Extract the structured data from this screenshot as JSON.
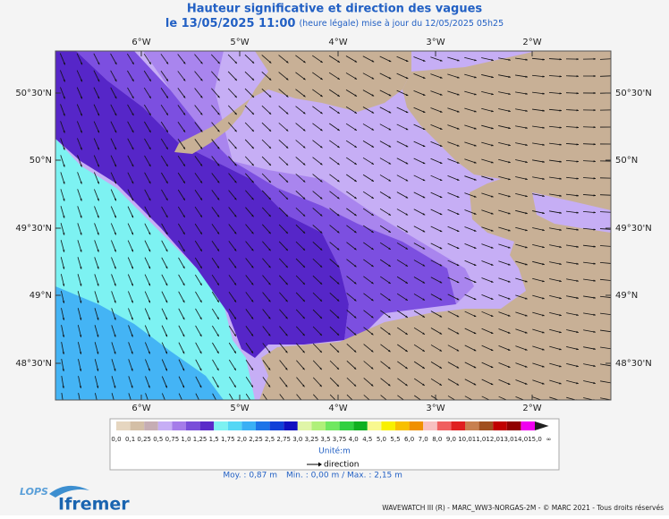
{
  "header": {
    "title": "Hauteur significative et direction des vagues",
    "date": "le 13/05/2025 11:00",
    "update": "(heure légale) mise à jour du 12/05/2025 05h25"
  },
  "map": {
    "longitudes": [
      "6°W",
      "5°W",
      "4°W",
      "3°W",
      "2°W"
    ],
    "latitudes": [
      "50°30'N",
      "50°N",
      "49°30'N",
      "49°N",
      "48°30'N"
    ]
  },
  "legend": {
    "labels": [
      "0,0",
      "0,1",
      "0,25",
      "0,5",
      "0,75",
      "1,0",
      "1,25",
      "1,5",
      "1,75",
      "2,0",
      "2,25",
      "2,5",
      "2,75",
      "3,0",
      "3,25",
      "3,5",
      "3,75",
      "4,0",
      "4,5",
      "5,0",
      "5,5",
      "6,0",
      "7,0",
      "8,0",
      "9,0",
      "10,0",
      "11,0",
      "12,0",
      "13,0",
      "14,0",
      "15,0",
      "∞"
    ],
    "colors": [
      "#e6d6c0",
      "#d4bfa6",
      "#c6adb4",
      "#c6aef5",
      "#a57ce9",
      "#7a4fd9",
      "#5a2bc9",
      "#7df2f2",
      "#55d7f5",
      "#3ab0f5",
      "#1e74e8",
      "#1040d8",
      "#1010c0",
      "#e0f5a8",
      "#b0f07a",
      "#70e860",
      "#30d040",
      "#10b020",
      "#f8f890",
      "#f8f000",
      "#f8c000",
      "#f09000",
      "#f8c0c0",
      "#f06060",
      "#e02020",
      "#c88050",
      "#a05020",
      "#c00000",
      "#900000",
      "#f000f0",
      "#202020"
    ],
    "unit": "Unité:m",
    "direction": "direction"
  },
  "stats": {
    "mean": "Moy. : 0,87 m",
    "range": "Min. : 0,00 m / Max. : 2,15 m"
  },
  "footer": {
    "credits": "WAVEWATCH III (R) - MARC_WW3-NORGAS-2M - © MARC 2021 - Tous droits réservés",
    "logos": [
      "LOPS",
      "Ifremer"
    ]
  }
}
